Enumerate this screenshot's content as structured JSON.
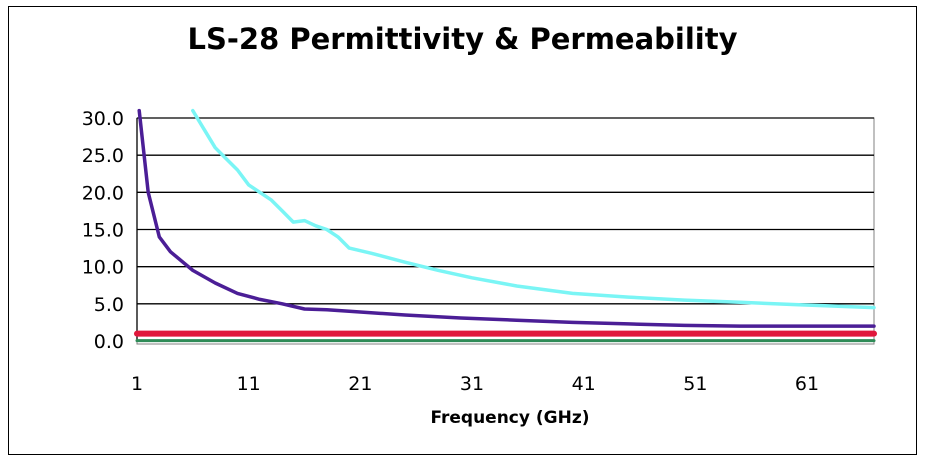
{
  "chart_data": {
    "type": "line",
    "title": "LS-28 Permittivity & Permeability",
    "xlabel": "Frequency (GHz)",
    "ylabel": "",
    "xlim": [
      1,
      67
    ],
    "ylim": [
      0,
      30
    ],
    "xticks": [
      1,
      11,
      21,
      31,
      41,
      51,
      61
    ],
    "yticks": [
      "0.0",
      "5.0",
      "10.0",
      "15.0",
      "20.0",
      "25.0",
      "30.0"
    ],
    "grid": "horizontal",
    "legend": "none",
    "series": [
      {
        "color": "#4b1e96",
        "x": [
          1.2,
          2,
          3,
          4,
          6,
          8,
          10,
          12,
          14,
          16,
          18,
          20,
          25,
          30,
          35,
          40,
          45,
          50,
          55,
          60,
          67
        ],
        "y": [
          31,
          20,
          14,
          12,
          9.5,
          7.8,
          6.4,
          5.6,
          5.0,
          4.3,
          4.2,
          4.0,
          3.5,
          3.1,
          2.8,
          2.5,
          2.3,
          2.1,
          2.0,
          2.0,
          2.0
        ]
      },
      {
        "color": "#7af5f5",
        "x": [
          6,
          7,
          8,
          9,
          10,
          11,
          12,
          13,
          14,
          15,
          16,
          17,
          18,
          19,
          20,
          22,
          25,
          28,
          31,
          35,
          40,
          45,
          50,
          55,
          60,
          67
        ],
        "y": [
          31,
          28.5,
          26,
          24.5,
          23,
          21,
          20,
          19,
          17.5,
          16,
          16.2,
          15.5,
          15,
          14,
          12.5,
          11.8,
          10.6,
          9.5,
          8.5,
          7.4,
          6.4,
          5.9,
          5.5,
          5.2,
          4.9,
          4.5
        ]
      },
      {
        "color": "#e0183c",
        "x": [
          1,
          67
        ],
        "y": [
          1.0,
          1.0
        ]
      },
      {
        "color": "#2e8b57",
        "x": [
          1,
          67
        ],
        "y": [
          0.05,
          0.05
        ]
      }
    ]
  }
}
